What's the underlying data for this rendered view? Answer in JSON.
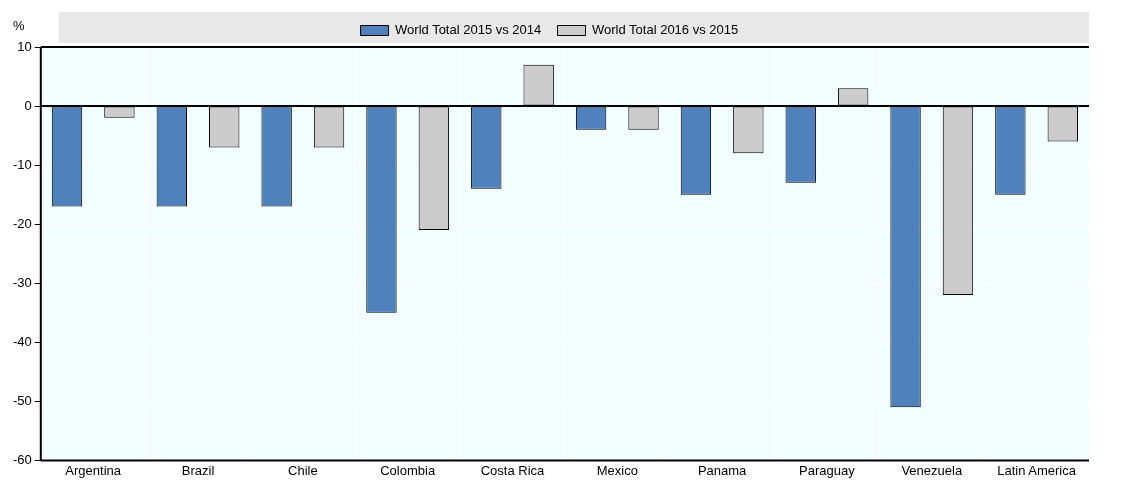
{
  "chart_data": {
    "type": "bar",
    "ylabel": "%",
    "categories": [
      "Argentina",
      "Brazil",
      "Chile",
      "Colombia",
      "Costa Rica",
      "Mexico",
      "Panama",
      "Paraguay",
      "Venezuela",
      "Latin America"
    ],
    "series": [
      {
        "name": "World Total 2015 vs 2014",
        "color": "#4f81bd",
        "values": [
          -17,
          -17,
          -17,
          -35,
          -14,
          -4,
          -15,
          -13,
          -51,
          -15
        ]
      },
      {
        "name": "World Total 2016 vs 2015",
        "color": "#cccccc",
        "values": [
          -2,
          -7,
          -7,
          -21,
          7,
          -4,
          -8,
          3,
          -32,
          -6
        ]
      }
    ],
    "ylim": [
      -60,
      10
    ],
    "yticks": [
      -60,
      -50,
      -40,
      -30,
      -20,
      -10,
      0,
      10
    ],
    "grid": true,
    "legend": "top"
  }
}
